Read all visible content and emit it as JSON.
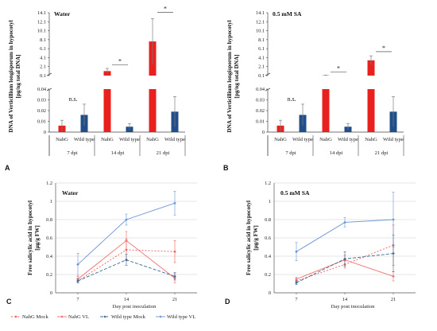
{
  "colors": {
    "nahg": "#e8201e",
    "wild": "#1f4e8a",
    "nahg_mock_line": "#f05a5a",
    "nahg_vl_line": "#f07070",
    "wild_mock_line": "#3c6a97",
    "wild_vl_line": "#6b93d6",
    "err": "#7f7f7f",
    "grid": "#cccccc"
  },
  "panels": {
    "A": {
      "label": "A",
      "title": "Water"
    },
    "B": {
      "label": "B",
      "title": "0.5 mM SA"
    },
    "C": {
      "label": "C",
      "title": "Water"
    },
    "D": {
      "label": "D",
      "title": "0.5 mM SA"
    }
  },
  "bar_ylabel": [
    "DNA of Verticillium longisporum in hypocotyl",
    "[pg/ng total DNA]"
  ],
  "bar_yticks_top": [
    "14.1",
    "12.1",
    "10.1",
    "8.1",
    "6.1",
    "4.1",
    "2.1",
    "0.1"
  ],
  "bar_yticks_bottom": [
    "0.04",
    "0.03",
    "0.02",
    "0.01",
    "0"
  ],
  "bar_genotypes": [
    "NahG",
    "Wild type"
  ],
  "bar_dpi_labels": [
    "7 dpi",
    "14 dpi",
    "21 dpi"
  ],
  "line_ylabel": [
    "Free salicylic acid in hypocotyl",
    "[µg/g FW]"
  ],
  "line_xlabel": "Day post inoculation",
  "line_yticks": [
    "0",
    "0.2",
    "0.4",
    "0.6",
    "0.8",
    "1",
    "1.2"
  ],
  "line_xticks": [
    "7",
    "14",
    "21"
  ],
  "legend": [
    "NahG Mock",
    "NahG VL",
    "Wild type Mock",
    "Wild type VL"
  ],
  "chart_data": [
    {
      "panel": "A",
      "type": "bar",
      "title": "Water",
      "ylabel": "DNA of Verticillium longisporum in hypocotyl [pg/ng total DNA]",
      "axis_break": true,
      "categories": [
        "7 dpi",
        "14 dpi",
        "21 dpi"
      ],
      "series": [
        {
          "name": "NahG",
          "values": [
            0.006,
            1.1,
            7.7
          ],
          "errors": [
            0.005,
            0.6,
            5.1
          ]
        },
        {
          "name": "Wild type",
          "values": [
            0.016,
            0.005,
            0.019
          ],
          "errors": [
            0.01,
            0.003,
            0.014
          ]
        }
      ],
      "significance": [
        "n.s.",
        "*",
        "*"
      ]
    },
    {
      "panel": "B",
      "type": "bar",
      "title": "0.5 mM SA",
      "ylabel": "DNA of Verticillium longisporum in hypocotyl [pg/ng total DNA]",
      "axis_break": true,
      "categories": [
        "7 dpi",
        "14 dpi",
        "21 dpi"
      ],
      "series": [
        {
          "name": "NahG",
          "values": [
            0.006,
            0.15,
            3.5
          ],
          "errors": [
            0.005,
            0.05,
            1.0
          ]
        },
        {
          "name": "Wild type",
          "values": [
            0.016,
            0.005,
            0.019
          ],
          "errors": [
            0.01,
            0.003,
            0.014
          ]
        }
      ],
      "significance": [
        "n.s.",
        "*",
        "*"
      ]
    },
    {
      "panel": "C",
      "type": "line",
      "title": "Water",
      "xlabel": "Day post inoculation",
      "ylabel": "Free salicylic acid in hypocotyl [µg/g FW]",
      "x": [
        7,
        14,
        21
      ],
      "ylim": [
        0,
        1.2
      ],
      "series": [
        {
          "name": "NahG Mock",
          "values": [
            0.13,
            0.47,
            0.45
          ],
          "errors": [
            0.02,
            0.12,
            0.12
          ]
        },
        {
          "name": "NahG VL",
          "values": [
            0.15,
            0.57,
            0.16
          ],
          "errors": [
            0.03,
            0.1,
            0.05
          ]
        },
        {
          "name": "Wild type Mock",
          "values": [
            0.13,
            0.36,
            0.18
          ],
          "errors": [
            0.02,
            0.06,
            0.04
          ]
        },
        {
          "name": "Wild type VL",
          "values": [
            0.31,
            0.8,
            0.98
          ],
          "errors": [
            0.12,
            0.06,
            0.13
          ]
        }
      ]
    },
    {
      "panel": "D",
      "type": "line",
      "title": "0.5 mM SA",
      "xlabel": "Day post inoculation",
      "ylabel": "Free salicylic acid in hypocotyl [µg/g FW]",
      "x": [
        7,
        14,
        21
      ],
      "ylim": [
        0,
        1.2
      ],
      "series": [
        {
          "name": "NahG Mock",
          "values": [
            0.13,
            0.31,
            0.52
          ],
          "errors": [
            0.02,
            0.04,
            0.22
          ]
        },
        {
          "name": "NahG VL",
          "values": [
            0.15,
            0.36,
            0.18
          ],
          "errors": [
            0.02,
            0.05,
            0.05
          ]
        },
        {
          "name": "Wild type Mock",
          "values": [
            0.11,
            0.37,
            0.43
          ],
          "errors": [
            0.02,
            0.08,
            0.2
          ]
        },
        {
          "name": "Wild type VL",
          "values": [
            0.45,
            0.77,
            0.8
          ],
          "errors": [
            0.1,
            0.05,
            0.3
          ]
        }
      ]
    }
  ]
}
